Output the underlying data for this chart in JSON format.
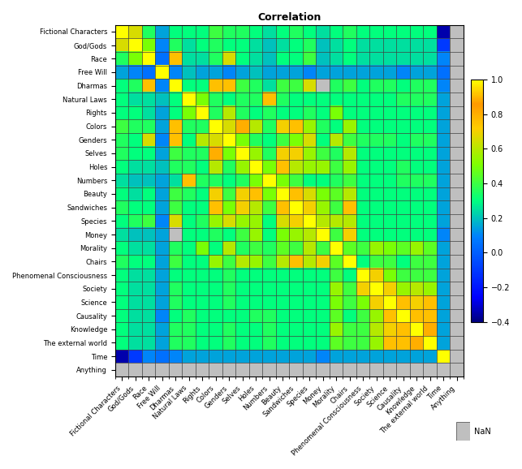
{
  "labels": [
    "Fictional Characters",
    "God/Gods",
    "Race",
    "Free Will",
    "Dharmas",
    "Natural Laws",
    "Rights",
    "Colors",
    "Genders",
    "Selves",
    "Holes",
    "Numbers",
    "Beauty",
    "Sandwiches",
    "Species",
    "Money",
    "Morality",
    "Chairs",
    "Phenomenal Consciousness",
    "Society",
    "Science",
    "Causality",
    "Knowledge",
    "The external world",
    "Time",
    "Anything"
  ],
  "title": "Correlation",
  "vmin": -0.4,
  "vmax": 1.0,
  "nan_color": [
    0.75,
    0.75,
    0.75
  ],
  "title_fontsize": 9,
  "tick_fontsize": 6,
  "cbar_tick_fontsize": 7,
  "corr": [
    [
      1.0,
      0.65,
      0.35,
      0.15,
      0.3,
      0.3,
      0.3,
      0.4,
      0.35,
      0.35,
      0.3,
      0.25,
      0.3,
      0.35,
      0.3,
      0.25,
      0.3,
      0.35,
      0.3,
      0.3,
      0.3,
      0.3,
      0.3,
      0.3,
      -0.35,
      null
    ],
    [
      0.65,
      1.0,
      0.5,
      0.1,
      0.35,
      0.25,
      0.3,
      0.35,
      0.3,
      0.3,
      0.25,
      0.2,
      0.25,
      0.3,
      0.35,
      0.2,
      0.25,
      0.3,
      0.25,
      0.25,
      0.25,
      0.25,
      0.25,
      0.25,
      -0.1,
      null
    ],
    [
      0.35,
      0.5,
      1.0,
      0.05,
      0.75,
      0.25,
      0.25,
      0.35,
      0.65,
      0.3,
      0.25,
      0.2,
      0.3,
      0.3,
      0.4,
      0.2,
      0.25,
      0.3,
      0.25,
      0.25,
      0.25,
      0.25,
      0.25,
      0.25,
      0.1,
      null
    ],
    [
      0.15,
      0.1,
      0.05,
      1.0,
      0.1,
      0.2,
      0.15,
      0.15,
      0.1,
      0.15,
      0.2,
      0.15,
      0.15,
      0.15,
      0.1,
      0.15,
      0.15,
      0.15,
      0.15,
      0.15,
      0.15,
      0.1,
      0.15,
      0.15,
      0.05,
      null
    ],
    [
      0.3,
      0.35,
      0.75,
      0.1,
      1.0,
      0.3,
      0.3,
      0.75,
      0.75,
      0.4,
      0.35,
      0.25,
      0.4,
      0.4,
      0.65,
      null,
      0.35,
      0.4,
      0.3,
      0.35,
      0.35,
      0.3,
      0.35,
      0.35,
      0.1,
      null
    ],
    [
      0.3,
      0.25,
      0.25,
      0.2,
      0.3,
      1.0,
      0.5,
      0.35,
      0.3,
      0.35,
      0.35,
      0.75,
      0.35,
      0.3,
      0.3,
      0.3,
      0.3,
      0.3,
      0.3,
      0.3,
      0.3,
      0.35,
      0.35,
      0.35,
      0.15,
      null
    ],
    [
      0.3,
      0.3,
      0.25,
      0.15,
      0.3,
      0.5,
      1.0,
      0.35,
      0.6,
      0.35,
      0.3,
      0.35,
      0.3,
      0.3,
      0.35,
      0.3,
      0.5,
      0.3,
      0.3,
      0.3,
      0.3,
      0.3,
      0.3,
      0.3,
      0.15,
      null
    ],
    [
      0.4,
      0.35,
      0.35,
      0.15,
      0.75,
      0.35,
      0.35,
      1.0,
      0.65,
      0.8,
      0.6,
      0.35,
      0.7,
      0.75,
      0.55,
      0.35,
      0.3,
      0.55,
      0.3,
      0.3,
      0.3,
      0.3,
      0.3,
      0.3,
      0.15,
      null
    ],
    [
      0.35,
      0.3,
      0.65,
      0.1,
      0.75,
      0.3,
      0.6,
      0.65,
      1.0,
      0.5,
      0.35,
      0.3,
      0.4,
      0.5,
      0.65,
      0.3,
      0.6,
      0.4,
      0.35,
      0.35,
      0.35,
      0.3,
      0.35,
      0.35,
      0.15,
      null
    ],
    [
      0.35,
      0.3,
      0.3,
      0.15,
      0.4,
      0.35,
      0.35,
      0.8,
      0.5,
      1.0,
      0.55,
      0.35,
      0.7,
      0.7,
      0.55,
      0.4,
      0.35,
      0.6,
      0.3,
      0.3,
      0.3,
      0.3,
      0.3,
      0.3,
      0.15,
      null
    ],
    [
      0.3,
      0.25,
      0.25,
      0.2,
      0.35,
      0.35,
      0.3,
      0.6,
      0.35,
      0.55,
      1.0,
      0.5,
      0.75,
      0.6,
      0.55,
      0.55,
      0.4,
      0.55,
      0.3,
      0.3,
      0.3,
      0.35,
      0.3,
      0.3,
      0.15,
      null
    ],
    [
      0.25,
      0.2,
      0.2,
      0.15,
      0.25,
      0.75,
      0.35,
      0.35,
      0.3,
      0.35,
      0.5,
      1.0,
      0.5,
      0.4,
      0.3,
      0.3,
      0.35,
      0.4,
      0.3,
      0.3,
      0.3,
      0.35,
      0.35,
      0.35,
      0.15,
      null
    ],
    [
      0.3,
      0.25,
      0.3,
      0.15,
      0.4,
      0.35,
      0.3,
      0.7,
      0.4,
      0.7,
      0.75,
      0.5,
      1.0,
      0.75,
      0.65,
      0.5,
      0.45,
      0.6,
      0.3,
      0.3,
      0.3,
      0.3,
      0.3,
      0.3,
      0.15,
      null
    ],
    [
      0.35,
      0.3,
      0.3,
      0.15,
      0.4,
      0.3,
      0.3,
      0.75,
      0.5,
      0.7,
      0.6,
      0.4,
      0.75,
      1.0,
      0.7,
      0.55,
      0.4,
      0.75,
      0.3,
      0.3,
      0.3,
      0.3,
      0.3,
      0.3,
      0.15,
      null
    ],
    [
      0.3,
      0.35,
      0.4,
      0.1,
      0.65,
      0.3,
      0.35,
      0.55,
      0.65,
      0.55,
      0.55,
      0.3,
      0.65,
      0.7,
      1.0,
      0.6,
      0.6,
      0.6,
      0.3,
      0.3,
      0.3,
      0.3,
      0.3,
      0.3,
      0.15,
      null
    ],
    [
      0.25,
      0.2,
      0.2,
      0.15,
      null,
      0.3,
      0.3,
      0.35,
      0.3,
      0.4,
      0.55,
      0.3,
      0.5,
      0.55,
      0.6,
      1.0,
      0.4,
      0.7,
      0.3,
      0.3,
      0.3,
      0.3,
      0.3,
      0.3,
      0.1,
      null
    ],
    [
      0.3,
      0.25,
      0.25,
      0.15,
      0.35,
      0.3,
      0.5,
      0.3,
      0.6,
      0.35,
      0.4,
      0.35,
      0.45,
      0.4,
      0.6,
      0.4,
      1.0,
      0.45,
      0.4,
      0.55,
      0.5,
      0.45,
      0.55,
      0.45,
      0.15,
      null
    ],
    [
      0.35,
      0.3,
      0.3,
      0.15,
      0.4,
      0.3,
      0.3,
      0.55,
      0.4,
      0.6,
      0.55,
      0.4,
      0.6,
      0.75,
      0.6,
      0.7,
      0.45,
      1.0,
      0.3,
      0.4,
      0.4,
      0.3,
      0.4,
      0.4,
      0.15,
      null
    ],
    [
      0.3,
      0.25,
      0.25,
      0.15,
      0.3,
      0.3,
      0.3,
      0.3,
      0.35,
      0.3,
      0.3,
      0.3,
      0.3,
      0.3,
      0.3,
      0.3,
      0.4,
      0.3,
      1.0,
      0.7,
      0.5,
      0.4,
      0.4,
      0.4,
      0.15,
      null
    ],
    [
      0.3,
      0.25,
      0.25,
      0.15,
      0.35,
      0.3,
      0.3,
      0.3,
      0.35,
      0.3,
      0.3,
      0.3,
      0.3,
      0.3,
      0.3,
      0.3,
      0.55,
      0.4,
      0.7,
      1.0,
      0.7,
      0.55,
      0.6,
      0.55,
      0.15,
      null
    ],
    [
      0.3,
      0.25,
      0.25,
      0.15,
      0.35,
      0.3,
      0.3,
      0.3,
      0.35,
      0.3,
      0.3,
      0.3,
      0.3,
      0.3,
      0.3,
      0.3,
      0.5,
      0.4,
      0.5,
      0.7,
      1.0,
      0.75,
      0.7,
      0.75,
      0.15,
      null
    ],
    [
      0.3,
      0.25,
      0.25,
      0.1,
      0.3,
      0.35,
      0.3,
      0.3,
      0.3,
      0.3,
      0.35,
      0.35,
      0.3,
      0.3,
      0.3,
      0.3,
      0.45,
      0.3,
      0.4,
      0.55,
      0.75,
      1.0,
      0.75,
      0.75,
      0.15,
      null
    ],
    [
      0.3,
      0.25,
      0.25,
      0.15,
      0.35,
      0.35,
      0.3,
      0.3,
      0.35,
      0.3,
      0.3,
      0.35,
      0.3,
      0.3,
      0.3,
      0.3,
      0.55,
      0.4,
      0.4,
      0.6,
      0.7,
      0.75,
      1.0,
      0.8,
      0.15,
      null
    ],
    [
      0.3,
      0.25,
      0.25,
      0.15,
      0.35,
      0.35,
      0.3,
      0.3,
      0.35,
      0.3,
      0.3,
      0.35,
      0.3,
      0.3,
      0.3,
      0.3,
      0.45,
      0.4,
      0.4,
      0.55,
      0.75,
      0.75,
      0.8,
      1.0,
      0.15,
      null
    ],
    [
      -0.35,
      -0.1,
      0.1,
      0.05,
      0.1,
      0.15,
      0.15,
      0.15,
      0.15,
      0.15,
      0.15,
      0.15,
      0.15,
      0.15,
      0.15,
      0.1,
      0.15,
      0.15,
      0.15,
      0.15,
      0.15,
      0.15,
      0.15,
      0.15,
      1.0,
      null
    ],
    [
      null,
      null,
      null,
      null,
      null,
      null,
      null,
      null,
      null,
      null,
      null,
      null,
      null,
      null,
      null,
      null,
      null,
      null,
      null,
      null,
      null,
      null,
      null,
      null,
      null,
      null
    ]
  ]
}
